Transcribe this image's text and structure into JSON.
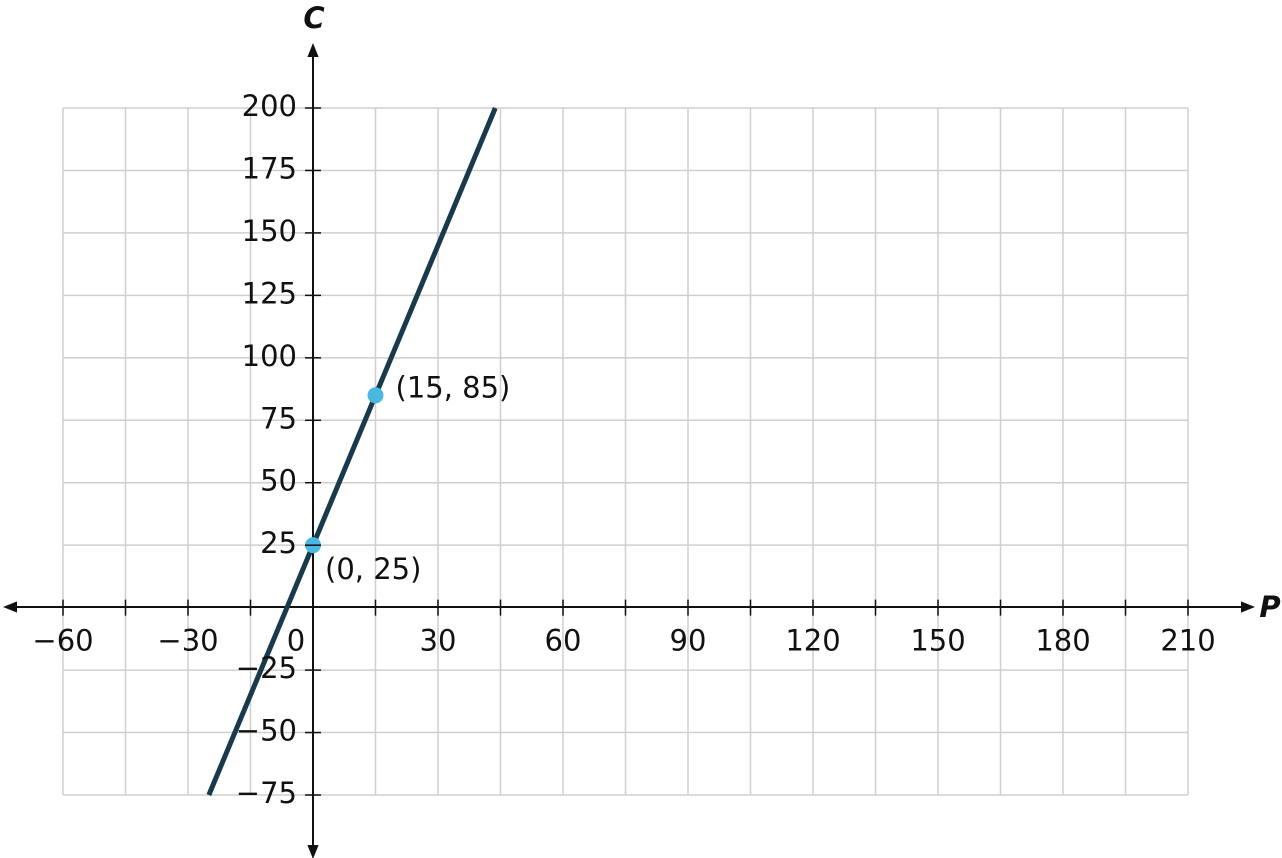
{
  "chart_data": {
    "type": "line",
    "xlabel": "P",
    "ylabel": "C",
    "xlim": [
      -60,
      210
    ],
    "ylim": [
      -75,
      200
    ],
    "xticks": [
      {
        "value": -60,
        "label": "−60"
      },
      {
        "value": -30,
        "label": "−30"
      },
      0,
      30,
      60,
      90,
      120,
      150,
      180,
      210
    ],
    "xminor_ticks": [
      -45,
      -15,
      15,
      45,
      75,
      105,
      135,
      165,
      195
    ],
    "yticks": [
      {
        "value": -75,
        "label": "−75"
      },
      {
        "value": -50,
        "label": "−50"
      },
      {
        "value": -25,
        "label": "−25"
      },
      25,
      50,
      75,
      100,
      125,
      150,
      175,
      200
    ],
    "grid": true,
    "series": [
      {
        "style": "line",
        "color": "#183a4a",
        "x": [
          -25,
          43.75
        ],
        "values": [
          -75,
          200
        ]
      },
      {
        "style": "points",
        "color": "#4ab8e0",
        "x": [
          0,
          15
        ],
        "values": [
          25,
          85
        ],
        "value_labels": [
          "(0, 25)",
          "(15, 85)"
        ]
      }
    ]
  }
}
